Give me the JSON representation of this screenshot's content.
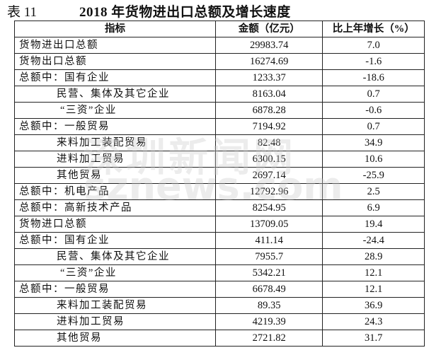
{
  "table_number": "表 11",
  "title": "2018 年货物进出口总额及增长速度",
  "watermark": [
    "深圳新闻网",
    "sznews.com"
  ],
  "headers": [
    "指标",
    "金额（亿元）",
    "比上年增长（%）"
  ],
  "rows": [
    {
      "name": "货物进出口总额",
      "level": 0,
      "amount": "29983.74",
      "growth": "7.0"
    },
    {
      "name": "货物出口总额",
      "level": 0,
      "amount": "16274.69",
      "growth": "-1.6"
    },
    {
      "name": "总额中：国有企业",
      "level": 0,
      "amount": "1233.37",
      "growth": "-18.6"
    },
    {
      "name": "民营、集体及其它企业",
      "level": 1,
      "amount": "8163.04",
      "growth": "0.7"
    },
    {
      "name": "“三资”企业",
      "level": 2,
      "amount": "6878.28",
      "growth": "-0.6"
    },
    {
      "name": "总额中：一般贸易",
      "level": 0,
      "amount": "7194.92",
      "growth": "0.7"
    },
    {
      "name": "来料加工装配贸易",
      "level": 1,
      "amount": "82.48",
      "growth": "34.9"
    },
    {
      "name": "进料加工贸易",
      "level": 1,
      "amount": "6300.15",
      "growth": "10.6"
    },
    {
      "name": "其他贸易",
      "level": 1,
      "amount": "2697.14",
      "growth": "-25.9"
    },
    {
      "name": "总额中：机电产品",
      "level": 0,
      "amount": "12792.96",
      "growth": "2.5"
    },
    {
      "name": "总额中：高新技术产品",
      "level": 0,
      "amount": "8254.95",
      "growth": "6.9"
    },
    {
      "name": "货物进口总额",
      "level": 0,
      "amount": "13709.05",
      "growth": "19.4"
    },
    {
      "name": "总额中：国有企业",
      "level": 0,
      "amount": "411.14",
      "growth": "-24.4"
    },
    {
      "name": "民营、集体及其它企业",
      "level": 1,
      "amount": "7955.7",
      "growth": "28.9"
    },
    {
      "name": "“三资”企业",
      "level": 2,
      "amount": "5342.21",
      "growth": "12.1"
    },
    {
      "name": "总额中：一般贸易",
      "level": 0,
      "amount": "6678.49",
      "growth": "12.1"
    },
    {
      "name": "来料加工装配贸易",
      "level": 1,
      "amount": "89.35",
      "growth": "36.9"
    },
    {
      "name": "进料加工贸易",
      "level": 1,
      "amount": "4219.39",
      "growth": "24.3"
    },
    {
      "name": "其他贸易",
      "level": 1,
      "amount": "2721.82",
      "growth": "31.7"
    }
  ]
}
